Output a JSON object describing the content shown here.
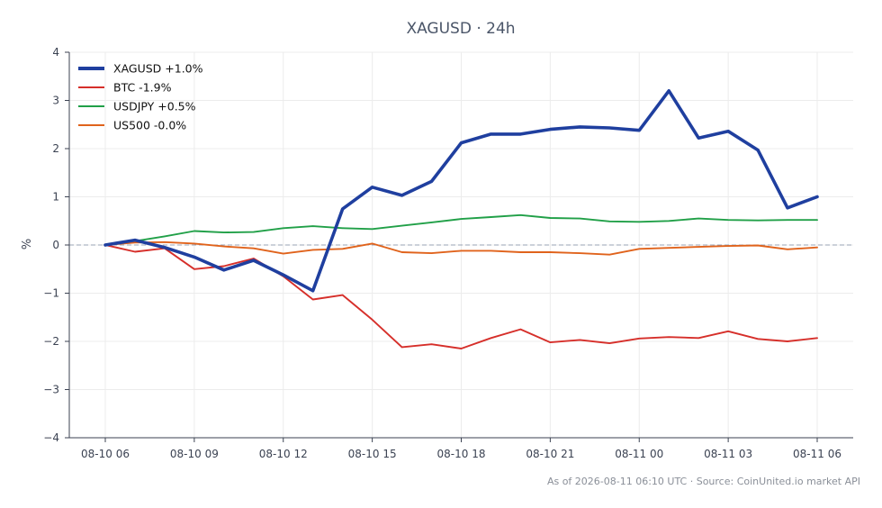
{
  "chart_data": {
    "type": "line",
    "title": "XAGUSD · 24h",
    "xlabel": "",
    "ylabel": "%",
    "ylim": [
      -4,
      4
    ],
    "yticks": [
      -4,
      -3,
      -2,
      -1,
      0,
      1,
      2,
      3,
      4
    ],
    "ytick_labels": [
      "−4",
      "−3",
      "−2",
      "−1",
      "0",
      "1",
      "2",
      "3",
      "4"
    ],
    "x": [
      "08-10 06",
      "08-10 07",
      "08-10 08",
      "08-10 09",
      "08-10 10",
      "08-10 11",
      "08-10 12",
      "08-10 13",
      "08-10 14",
      "08-10 15",
      "08-10 16",
      "08-10 17",
      "08-10 18",
      "08-10 19",
      "08-10 20",
      "08-10 21",
      "08-10 22",
      "08-10 23",
      "08-11 00",
      "08-11 01",
      "08-11 02",
      "08-11 03",
      "08-11 04",
      "08-11 05",
      "08-11 06"
    ],
    "xtick_labels": [
      "08-10 06",
      "08-10 09",
      "08-10 12",
      "08-10 15",
      "08-10 18",
      "08-10 21",
      "08-11 00",
      "08-11 03",
      "08-11 06"
    ],
    "grid": true,
    "zero_line": true,
    "legend_position": "top-left",
    "series": [
      {
        "name": "XAGUSD +1.0%",
        "color": "#1f3f9f",
        "emphasis": true,
        "values": [
          0.0,
          0.1,
          -0.05,
          -0.25,
          -0.52,
          -0.32,
          -0.62,
          -0.95,
          0.75,
          1.2,
          1.03,
          1.32,
          2.12,
          2.3,
          2.3,
          2.4,
          2.45,
          2.43,
          2.38,
          3.2,
          2.22,
          2.36,
          1.97,
          0.77,
          1.0
        ]
      },
      {
        "name": "BTC -1.9%",
        "color": "#d62f2a",
        "emphasis": false,
        "values": [
          0.0,
          -0.14,
          -0.07,
          -0.5,
          -0.44,
          -0.28,
          -0.65,
          -1.13,
          -1.04,
          -1.55,
          -2.12,
          -2.06,
          -2.15,
          -1.93,
          -1.75,
          -2.02,
          -1.97,
          -2.04,
          -1.94,
          -1.91,
          -1.93,
          -1.79,
          -1.95,
          -2.0,
          -1.93
        ]
      },
      {
        "name": "USDJPY +0.5%",
        "color": "#21a048",
        "emphasis": false,
        "values": [
          0.0,
          0.08,
          0.18,
          0.29,
          0.26,
          0.27,
          0.35,
          0.39,
          0.35,
          0.33,
          0.4,
          0.47,
          0.54,
          0.58,
          0.62,
          0.56,
          0.55,
          0.49,
          0.48,
          0.5,
          0.55,
          0.52,
          0.51,
          0.52,
          0.52
        ]
      },
      {
        "name": "US500 -0.0%",
        "color": "#e0631c",
        "emphasis": false,
        "values": [
          0.0,
          0.05,
          0.06,
          0.03,
          -0.03,
          -0.07,
          -0.18,
          -0.1,
          -0.08,
          0.03,
          -0.15,
          -0.17,
          -0.12,
          -0.12,
          -0.15,
          -0.15,
          -0.17,
          -0.2,
          -0.08,
          -0.06,
          -0.04,
          -0.02,
          -0.01,
          -0.09,
          -0.05
        ]
      }
    ],
    "source_note": "As of 2026-08-11 06:10 UTC · Source: CoinUnited.io market API"
  }
}
